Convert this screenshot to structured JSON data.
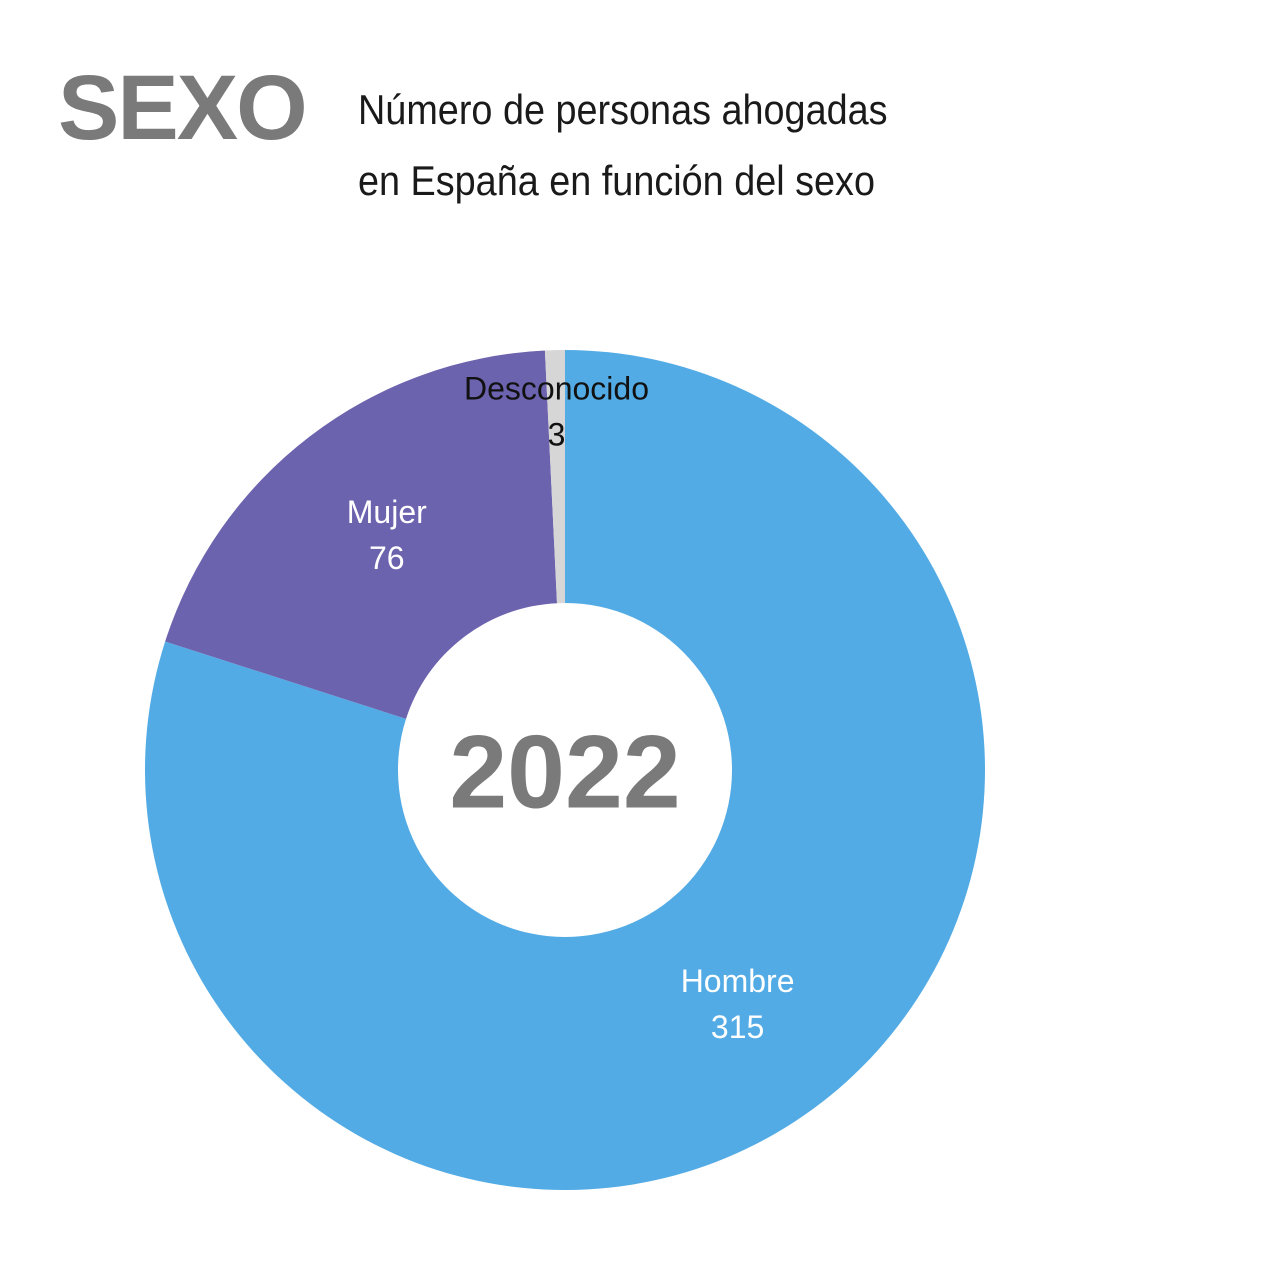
{
  "chart_data": {
    "type": "donut",
    "heading": "SEXO",
    "title": "Número de personas ahogadas\nen España en función del sexo",
    "center_label": "2022",
    "categories": [
      "Hombre",
      "Mujer",
      "Desconocido"
    ],
    "values": [
      315,
      76,
      3
    ],
    "colors": [
      "#53abe5",
      "#6c63ae",
      "#d6d6d6"
    ]
  }
}
